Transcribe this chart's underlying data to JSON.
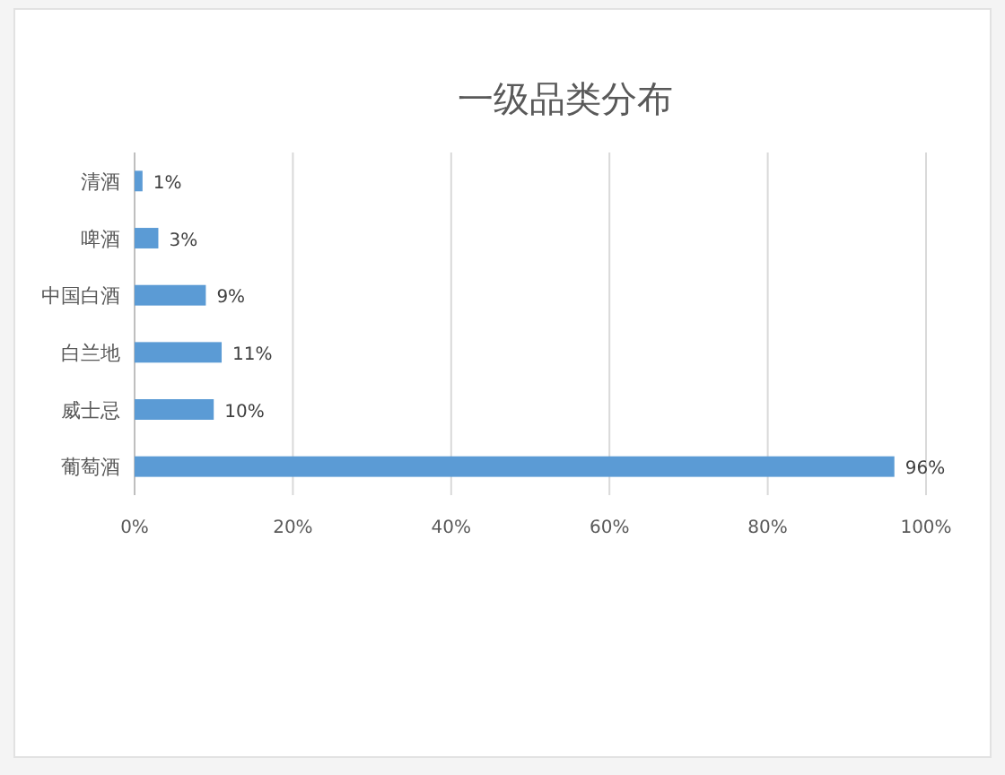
{
  "chart_data": {
    "type": "bar",
    "orientation": "horizontal",
    "title": "一级品类分布",
    "categories": [
      "清酒",
      "啤酒",
      "中国白酒",
      "白兰地",
      "威士忌",
      "葡萄酒"
    ],
    "values": [
      1,
      3,
      9,
      11,
      10,
      96
    ],
    "color": "#5b9bd5",
    "value_labels": [
      "1%",
      "3%",
      "9%",
      "11%",
      "10%",
      "96%"
    ],
    "xlim": [
      0,
      100
    ],
    "xticks": [
      {
        "value": 0,
        "label": "0%"
      },
      {
        "value": 20,
        "label": "20%"
      },
      {
        "value": 40,
        "label": "40%"
      },
      {
        "value": 60,
        "label": "60%"
      },
      {
        "value": 80,
        "label": "80%"
      },
      {
        "value": 100,
        "label": "100%"
      }
    ],
    "grid": "x"
  }
}
